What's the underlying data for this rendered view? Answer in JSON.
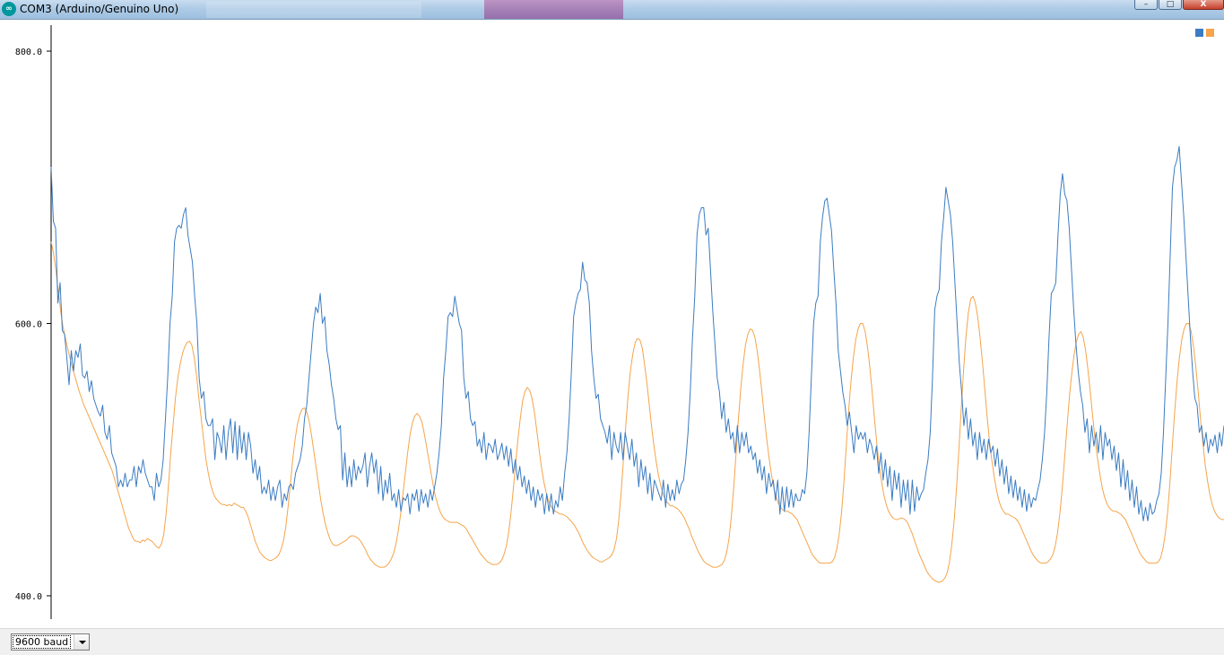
{
  "window": {
    "title": "COM3 (Arduino/Genuino Uno)",
    "icon": "arduino-icon",
    "controls": {
      "minimize": "–",
      "maximize": "□",
      "close": "X"
    }
  },
  "baud": {
    "selected": "9600 baud"
  },
  "chart_data": {
    "type": "line",
    "ylim": [
      400,
      800
    ],
    "yticks": [
      "400.0",
      "600.0",
      "800.0"
    ],
    "xlabel": "",
    "ylabel": "",
    "grid": false,
    "legend": "top-right",
    "n_points": 500,
    "series": [
      {
        "color": "#3b7cc2",
        "values": [
          715,
          675,
          670,
          615,
          630,
          595,
          592,
          575,
          555,
          580,
          565,
          580,
          575,
          585,
          562,
          560,
          565,
          550,
          558,
          545,
          540,
          535,
          532,
          540,
          520,
          515,
          525,
          505,
          500,
          495,
          480,
          485,
          480,
          490,
          480,
          485,
          485,
          495,
          480,
          495,
          490,
          500,
          490,
          485,
          480,
          480,
          470,
          490,
          480,
          485,
          500,
          530,
          560,
          600,
          620,
          660,
          670,
          672,
          670,
          680,
          685,
          665,
          655,
          645,
          620,
          600,
          560,
          545,
          550,
          530,
          525,
          525,
          530,
          500,
          520,
          515,
          505,
          525,
          500,
          520,
          530,
          505,
          528,
          500,
          525,
          505,
          520,
          500,
          520,
          510,
          490,
          500,
          485,
          495,
          475,
          480,
          475,
          485,
          470,
          480,
          470,
          480,
          485,
          465,
          475,
          470,
          480,
          482,
          478,
          490,
          495,
          500,
          510,
          530,
          540,
          560,
          580,
          600,
          612,
          608,
          622,
          600,
          605,
          580,
          570,
          555,
          545,
          530,
          522,
          525,
          485,
          505,
          480,
          495,
          480,
          500,
          485,
          495,
          490,
          495,
          505,
          480,
          495,
          505,
          490,
          500,
          475,
          495,
          470,
          485,
          475,
          490,
          470,
          475,
          465,
          478,
          462,
          472,
          470,
          475,
          460,
          475,
          470,
          478,
          462,
          478,
          468,
          475,
          465,
          478,
          470,
          480,
          490,
          505,
          525,
          560,
          580,
          605,
          608,
          605,
          620,
          610,
          600,
          595,
          560,
          545,
          550,
          530,
          525,
          528,
          510,
          515,
          505,
          520,
          500,
          512,
          510,
          505,
          515,
          500,
          505,
          512,
          500,
          510,
          495,
          508,
          490,
          500,
          485,
          495,
          480,
          488,
          475,
          485,
          470,
          480,
          465,
          478,
          470,
          475,
          460,
          475,
          462,
          475,
          460,
          470,
          465,
          480,
          470,
          490,
          505,
          530,
          565,
          605,
          615,
          622,
          625,
          645,
          632,
          630,
          615,
          580,
          560,
          545,
          548,
          530,
          525,
          520,
          512,
          525,
          500,
          520,
          510,
          505,
          520,
          500,
          520,
          510,
          500,
          515,
          495,
          505,
          480,
          500,
          485,
          495,
          475,
          490,
          470,
          485,
          480,
          475,
          470,
          485,
          465,
          482,
          470,
          478,
          470,
          485,
          475,
          482,
          485,
          500,
          520,
          550,
          590,
          620,
          665,
          680,
          685,
          685,
          665,
          670,
          640,
          610,
          585,
          560,
          550,
          530,
          542,
          520,
          530,
          515,
          520,
          505,
          525,
          505,
          520,
          510,
          520,
          505,
          510,
          500,
          505,
          490,
          500,
          485,
          495,
          475,
          490,
          480,
          485,
          470,
          485,
          460,
          480,
          462,
          480,
          465,
          478,
          465,
          475,
          470,
          470,
          478,
          475,
          490,
          520,
          560,
          600,
          615,
          620,
          660,
          678,
          690,
          692,
          680,
          668,
          640,
          615,
          580,
          565,
          550,
          540,
          525,
          535,
          520,
          505,
          525,
          515,
          520,
          515,
          520,
          505,
          515,
          510,
          500,
          510,
          490,
          505,
          485,
          500,
          480,
          495,
          470,
          492,
          478,
          490,
          465,
          485,
          470,
          485,
          460,
          485,
          462,
          480,
          470,
          475,
          478,
          490,
          500,
          520,
          560,
          610,
          620,
          625,
          660,
          678,
          700,
          690,
          680,
          660,
          630,
          600,
          570,
          550,
          525,
          538,
          515,
          530,
          510,
          520,
          500,
          520,
          505,
          515,
          500,
          515,
          505,
          510,
          495,
          508,
          488,
          500,
          482,
          495,
          475,
          488,
          472,
          485,
          470,
          480,
          465,
          478,
          462,
          475,
          465,
          472,
          470,
          478,
          485,
          500,
          520,
          550,
          590,
          622,
          625,
          630,
          665,
          695,
          710,
          695,
          690,
          670,
          640,
          610,
          585,
          565,
          550,
          540,
          520,
          530,
          505,
          525,
          510,
          520,
          505,
          525,
          500,
          520,
          510,
          515,
          500,
          510,
          492,
          505,
          480,
          500,
          478,
          492,
          470,
          485,
          465,
          480,
          460,
          470,
          455,
          465,
          455,
          468,
          460,
          462,
          470,
          475,
          490,
          520,
          560,
          600,
          650,
          700,
          715,
          720,
          730,
          705,
          680,
          650,
          620,
          590,
          565,
          545,
          540,
          520,
          525,
          510,
          520,
          505,
          515,
          510,
          518,
          505,
          520,
          510,
          525
        ]
      },
      {
        "color": "#f5a44a",
        "values": [
          660,
          652,
          640,
          625,
          610,
          598,
          590,
          582,
          575,
          568,
          562,
          556,
          550,
          545,
          540,
          536,
          532,
          528,
          524,
          520,
          516,
          512,
          508,
          504,
          500,
          496,
          492,
          486,
          480,
          474,
          468,
          462,
          456,
          450,
          446,
          442,
          440,
          440,
          439,
          441,
          440,
          442,
          441,
          440,
          438,
          436,
          435,
          438,
          445,
          460,
          480,
          505,
          525,
          545,
          560,
          570,
          578,
          583,
          586,
          587,
          584,
          575,
          562,
          545,
          530,
          515,
          500,
          490,
          482,
          476,
          472,
          470,
          468,
          467,
          467,
          466,
          467,
          466,
          468,
          467,
          466,
          465,
          465,
          462,
          458,
          452,
          446,
          440,
          436,
          432,
          430,
          428,
          427,
          426,
          426,
          427,
          428,
          430,
          434,
          440,
          450,
          465,
          482,
          500,
          515,
          526,
          533,
          537,
          538,
          535,
          528,
          518,
          506,
          494,
          482,
          470,
          460,
          452,
          446,
          441,
          438,
          437,
          437,
          438,
          439,
          440,
          441,
          443,
          444,
          444,
          443,
          442,
          440,
          437,
          434,
          430,
          427,
          425,
          423,
          422,
          421,
          421,
          421,
          422,
          424,
          427,
          431,
          438,
          448,
          460,
          475,
          490,
          505,
          518,
          527,
          532,
          534,
          532,
          528,
          520,
          510,
          500,
          490,
          480,
          472,
          466,
          461,
          458,
          456,
          455,
          454,
          454,
          454,
          454,
          453,
          452,
          451,
          449,
          446,
          443,
          440,
          437,
          434,
          431,
          429,
          427,
          425,
          424,
          423,
          423,
          423,
          424,
          426,
          430,
          436,
          446,
          460,
          478,
          497,
          515,
          530,
          543,
          550,
          553,
          551,
          545,
          535,
          522,
          508,
          495,
          484,
          476,
          470,
          466,
          463,
          462,
          461,
          460,
          460,
          459,
          458,
          456,
          454,
          452,
          449,
          446,
          442,
          438,
          435,
          432,
          430,
          428,
          427,
          426,
          425,
          425,
          426,
          427,
          428,
          430,
          434,
          442,
          456,
          476,
          500,
          525,
          548,
          566,
          578,
          586,
          589,
          588,
          582,
          570,
          556,
          540,
          524,
          510,
          498,
          488,
          480,
          474,
          470,
          468,
          466,
          466,
          465,
          464,
          462,
          460,
          457,
          453,
          449,
          444,
          440,
          436,
          432,
          429,
          426,
          424,
          423,
          422,
          421,
          421,
          421,
          422,
          423,
          426,
          432,
          442,
          458,
          480,
          505,
          530,
          552,
          570,
          584,
          592,
          596,
          595,
          590,
          580,
          566,
          550,
          532,
          516,
          502,
          490,
          480,
          473,
          468,
          465,
          463,
          462,
          462,
          461,
          460,
          458,
          456,
          452,
          448,
          444,
          440,
          436,
          432,
          429,
          427,
          425,
          424,
          424,
          424,
          424,
          424,
          425,
          428,
          435,
          446,
          462,
          484,
          510,
          536,
          558,
          575,
          588,
          596,
          600,
          600,
          594,
          583,
          568,
          550,
          530,
          512,
          496,
          484,
          474,
          467,
          462,
          459,
          457,
          456,
          456,
          457,
          457,
          456,
          454,
          450,
          446,
          441,
          436,
          431,
          427,
          423,
          419,
          416,
          414,
          412,
          411,
          410,
          410,
          411,
          413,
          417,
          425,
          438,
          456,
          480,
          508,
          538,
          566,
          590,
          608,
          618,
          620,
          615,
          605,
          590,
          572,
          552,
          532,
          514,
          500,
          488,
          478,
          470,
          465,
          462,
          460,
          460,
          459,
          458,
          457,
          455,
          452,
          448,
          444,
          440,
          436,
          432,
          429,
          427,
          425,
          424,
          424,
          424,
          425,
          427,
          430,
          436,
          446,
          460,
          478,
          500,
          522,
          544,
          562,
          576,
          586,
          592,
          594,
          590,
          580,
          566,
          550,
          532,
          516,
          502,
          490,
          480,
          473,
          468,
          465,
          463,
          462,
          462,
          461,
          460,
          458,
          456,
          452,
          448,
          444,
          440,
          436,
          432,
          429,
          427,
          425,
          424,
          424,
          424,
          424,
          425,
          428,
          435,
          446,
          462,
          484,
          510,
          536,
          558,
          575,
          588,
          596,
          600,
          600,
          594,
          583,
          568,
          550,
          530,
          512,
          496,
          484,
          474,
          467,
          462,
          459,
          457,
          456,
          456
        ]
      }
    ]
  }
}
